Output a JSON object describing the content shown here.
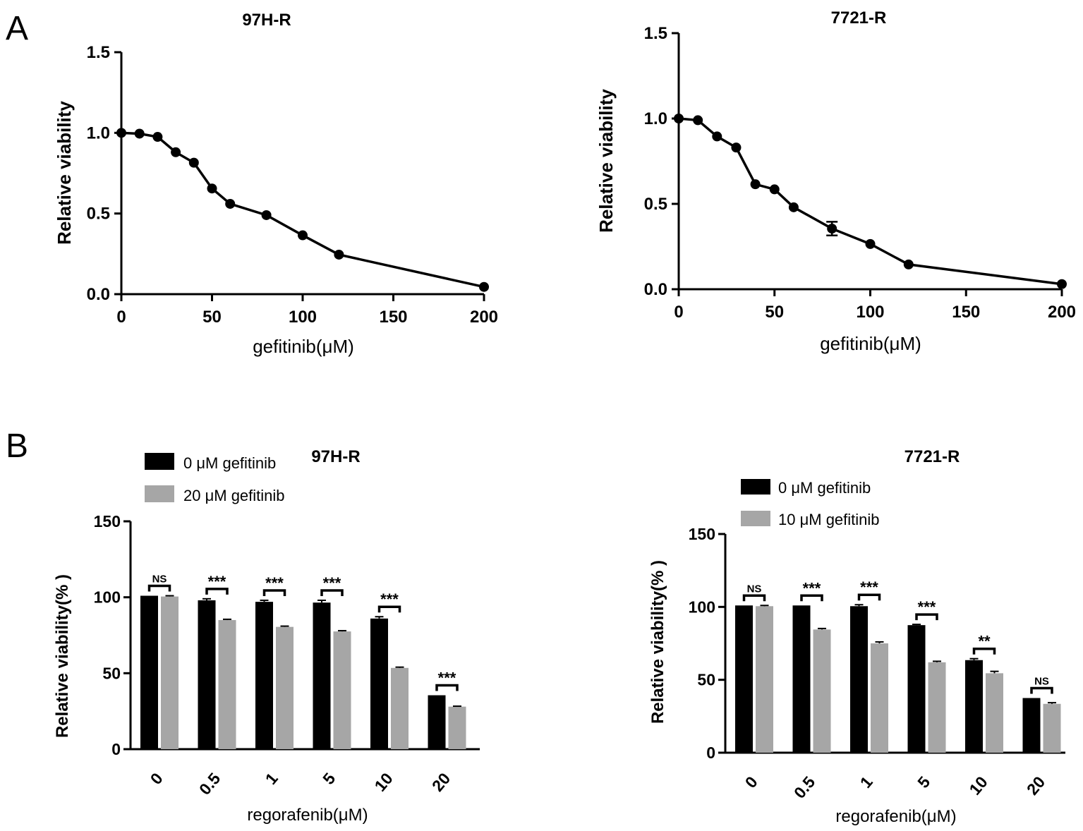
{
  "panels": {
    "a": {
      "letter": "A"
    },
    "b": {
      "letter": "B"
    }
  },
  "colors": {
    "black": "#000000",
    "gray": "#a6a6a6"
  },
  "chart_data": [
    {
      "id": "a1",
      "type": "line",
      "title": "97H-R",
      "xlabel": "gefitinib(μM)",
      "ylabel": "Relative  viability",
      "xlim": [
        0,
        200
      ],
      "ylim": [
        0,
        1.5
      ],
      "xticks": [
        0,
        50,
        100,
        150,
        200
      ],
      "yticks": [
        0.0,
        0.5,
        1.0,
        1.5
      ],
      "ytick_labels": [
        "0.0",
        "0.5",
        "1.0",
        "1.5"
      ],
      "x": [
        0,
        10,
        20,
        30,
        40,
        50,
        60,
        80,
        100,
        120,
        200
      ],
      "y": [
        1.0,
        0.995,
        0.975,
        0.88,
        0.815,
        0.655,
        0.56,
        0.49,
        0.365,
        0.245,
        0.045
      ]
    },
    {
      "id": "a2",
      "type": "line",
      "title": "7721-R",
      "xlabel": "gefitinib(μM)",
      "ylabel": "Relative  viability",
      "xlim": [
        0,
        200
      ],
      "ylim": [
        0,
        1.5
      ],
      "xticks": [
        0,
        50,
        100,
        150,
        200
      ],
      "yticks": [
        0.0,
        0.5,
        1.0,
        1.5
      ],
      "ytick_labels": [
        "0.0",
        "0.5",
        "1.0",
        "1.5"
      ],
      "x": [
        0,
        10,
        20,
        30,
        40,
        50,
        60,
        80,
        100,
        120,
        200
      ],
      "y": [
        1.0,
        0.99,
        0.895,
        0.83,
        0.615,
        0.585,
        0.48,
        0.355,
        0.265,
        0.145,
        0.03
      ],
      "error": [
        0,
        0,
        0,
        0,
        0,
        0,
        0,
        0.04,
        0,
        0,
        0
      ]
    },
    {
      "id": "b1",
      "type": "bar",
      "title": "97H-R",
      "xlabel": "regorafenib(μM)",
      "ylabel": "Relative  viability(% )",
      "ylim": [
        0,
        150
      ],
      "yticks": [
        0,
        50,
        100,
        150
      ],
      "categories": [
        "0",
        "0.5",
        "1",
        "5",
        "10",
        "20"
      ],
      "series": [
        {
          "name": "0 μM gefitinib",
          "color": "#000000",
          "values": [
            101,
            98,
            97,
            96.5,
            86,
            35.5
          ],
          "errors": [
            0,
            1,
            1,
            1.5,
            1.2,
            0
          ]
        },
        {
          "name": "20 μM gefitinib",
          "color": "#a6a6a6",
          "values": [
            100.5,
            85,
            80.5,
            77.5,
            53.5,
            28
          ],
          "errors": [
            0.5,
            0.5,
            0.5,
            0.5,
            0.5,
            0.3
          ]
        }
      ],
      "significance": [
        "NS",
        "***",
        "***",
        "***",
        "***",
        "***"
      ]
    },
    {
      "id": "b2",
      "type": "bar",
      "title": "7721-R",
      "xlabel": "regorafenib(μM)",
      "ylabel": "Relative  viability(% )",
      "ylim": [
        0,
        150
      ],
      "yticks": [
        0,
        50,
        100,
        150
      ],
      "categories": [
        "0",
        "0.5",
        "1",
        "5",
        "10",
        "20"
      ],
      "series": [
        {
          "name": "0 μM gefitinib",
          "color": "#000000",
          "values": [
            101,
            101,
            100.5,
            87.5,
            63.5,
            37.5
          ],
          "errors": [
            0,
            0,
            1,
            0.5,
            1,
            0
          ]
        },
        {
          "name": "10 μM gefitinib",
          "color": "#a6a6a6",
          "values": [
            100.5,
            84.5,
            75,
            62,
            54.5,
            33.5
          ],
          "errors": [
            0.5,
            0.7,
            1,
            0.7,
            1.3,
            0.8
          ]
        }
      ],
      "significance": [
        "NS",
        "***",
        "***",
        "***",
        "**",
        "NS"
      ]
    }
  ]
}
